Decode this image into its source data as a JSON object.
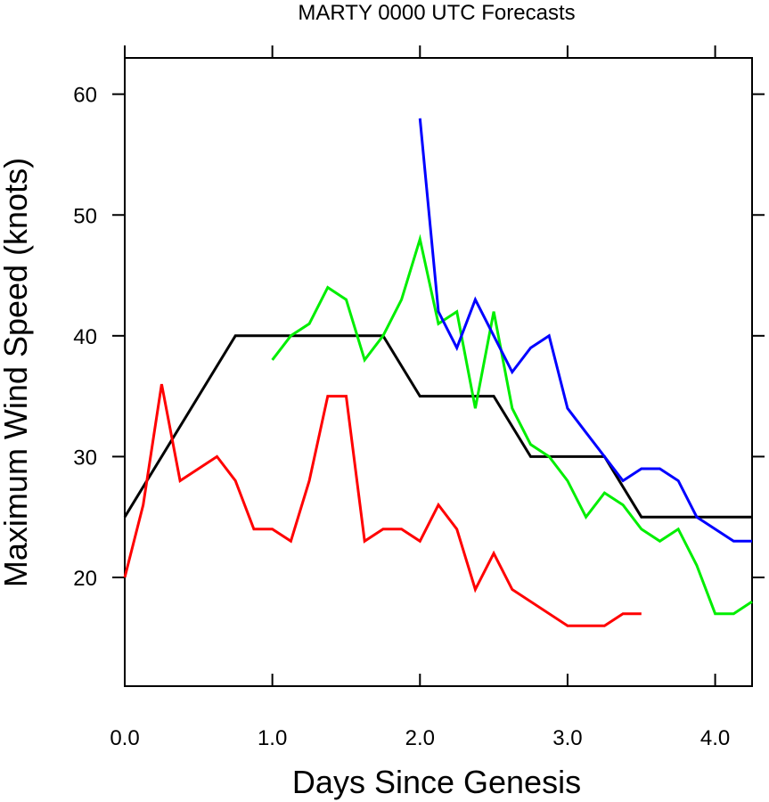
{
  "chart_data": {
    "type": "line",
    "title": "MARTY 0000 UTC Forecasts",
    "xlabel": "Days Since Genesis",
    "ylabel": "Maximum Wind Speed (knots)",
    "xlim": [
      0,
      4.25
    ],
    "ylim": [
      11,
      63
    ],
    "x_ticks": [
      0,
      1,
      2,
      3,
      4
    ],
    "x_tick_labels": [
      "0.0",
      "1.0",
      "2.0",
      "3.0",
      "4.0"
    ],
    "y_ticks": [
      20,
      30,
      40,
      50,
      60
    ],
    "y_tick_labels": [
      "20",
      "30",
      "40",
      "50",
      "60"
    ],
    "grid": false,
    "legend": "none",
    "series": [
      {
        "color": "#000000",
        "points": [
          [
            0,
            25
          ],
          [
            0.75,
            40
          ],
          [
            1.75,
            40
          ],
          [
            2.0,
            35
          ],
          [
            2.5,
            35
          ],
          [
            2.75,
            30
          ],
          [
            3.25,
            30
          ],
          [
            3.5,
            25
          ],
          [
            4.25,
            25
          ]
        ]
      },
      {
        "color": "#ff0000",
        "points": [
          [
            0,
            20
          ],
          [
            0.125,
            26
          ],
          [
            0.25,
            36
          ],
          [
            0.375,
            28
          ],
          [
            0.625,
            30
          ],
          [
            0.75,
            28
          ],
          [
            0.875,
            24
          ],
          [
            1.0,
            24
          ],
          [
            1.125,
            23
          ],
          [
            1.25,
            28
          ],
          [
            1.375,
            35
          ],
          [
            1.5,
            35
          ],
          [
            1.625,
            23
          ],
          [
            1.75,
            24
          ],
          [
            1.875,
            24
          ],
          [
            2.0,
            23
          ],
          [
            2.125,
            26
          ],
          [
            2.25,
            24
          ],
          [
            2.375,
            19
          ],
          [
            2.5,
            22
          ],
          [
            2.625,
            19
          ],
          [
            3.0,
            16
          ],
          [
            3.25,
            16
          ],
          [
            3.375,
            17
          ],
          [
            3.5,
            17
          ]
        ]
      },
      {
        "color": "#00ee00",
        "points": [
          [
            1.0,
            38
          ],
          [
            1.125,
            40
          ],
          [
            1.25,
            41
          ],
          [
            1.375,
            44
          ],
          [
            1.5,
            43
          ],
          [
            1.625,
            38
          ],
          [
            1.75,
            40
          ],
          [
            1.875,
            43
          ],
          [
            2.0,
            48
          ],
          [
            2.125,
            41
          ],
          [
            2.25,
            42
          ],
          [
            2.375,
            34
          ],
          [
            2.5,
            42
          ],
          [
            2.625,
            34
          ],
          [
            2.75,
            31
          ],
          [
            2.875,
            30
          ],
          [
            3.0,
            28
          ],
          [
            3.125,
            25
          ],
          [
            3.25,
            27
          ],
          [
            3.375,
            26
          ],
          [
            3.5,
            24
          ],
          [
            3.625,
            23
          ],
          [
            3.75,
            24
          ],
          [
            3.875,
            21
          ],
          [
            4.0,
            17
          ],
          [
            4.125,
            17
          ],
          [
            4.25,
            18
          ]
        ]
      },
      {
        "color": "#0000ff",
        "points": [
          [
            2.0,
            58
          ],
          [
            2.125,
            42
          ],
          [
            2.25,
            39
          ],
          [
            2.375,
            43
          ],
          [
            2.5,
            40
          ],
          [
            2.625,
            37
          ],
          [
            2.75,
            39
          ],
          [
            2.875,
            40
          ],
          [
            3.0,
            34
          ],
          [
            3.125,
            32
          ],
          [
            3.25,
            30
          ],
          [
            3.375,
            28
          ],
          [
            3.5,
            29
          ],
          [
            3.625,
            29
          ],
          [
            3.75,
            28
          ],
          [
            3.875,
            25
          ],
          [
            4.0,
            24
          ],
          [
            4.125,
            23
          ],
          [
            4.25,
            23
          ]
        ]
      }
    ]
  }
}
